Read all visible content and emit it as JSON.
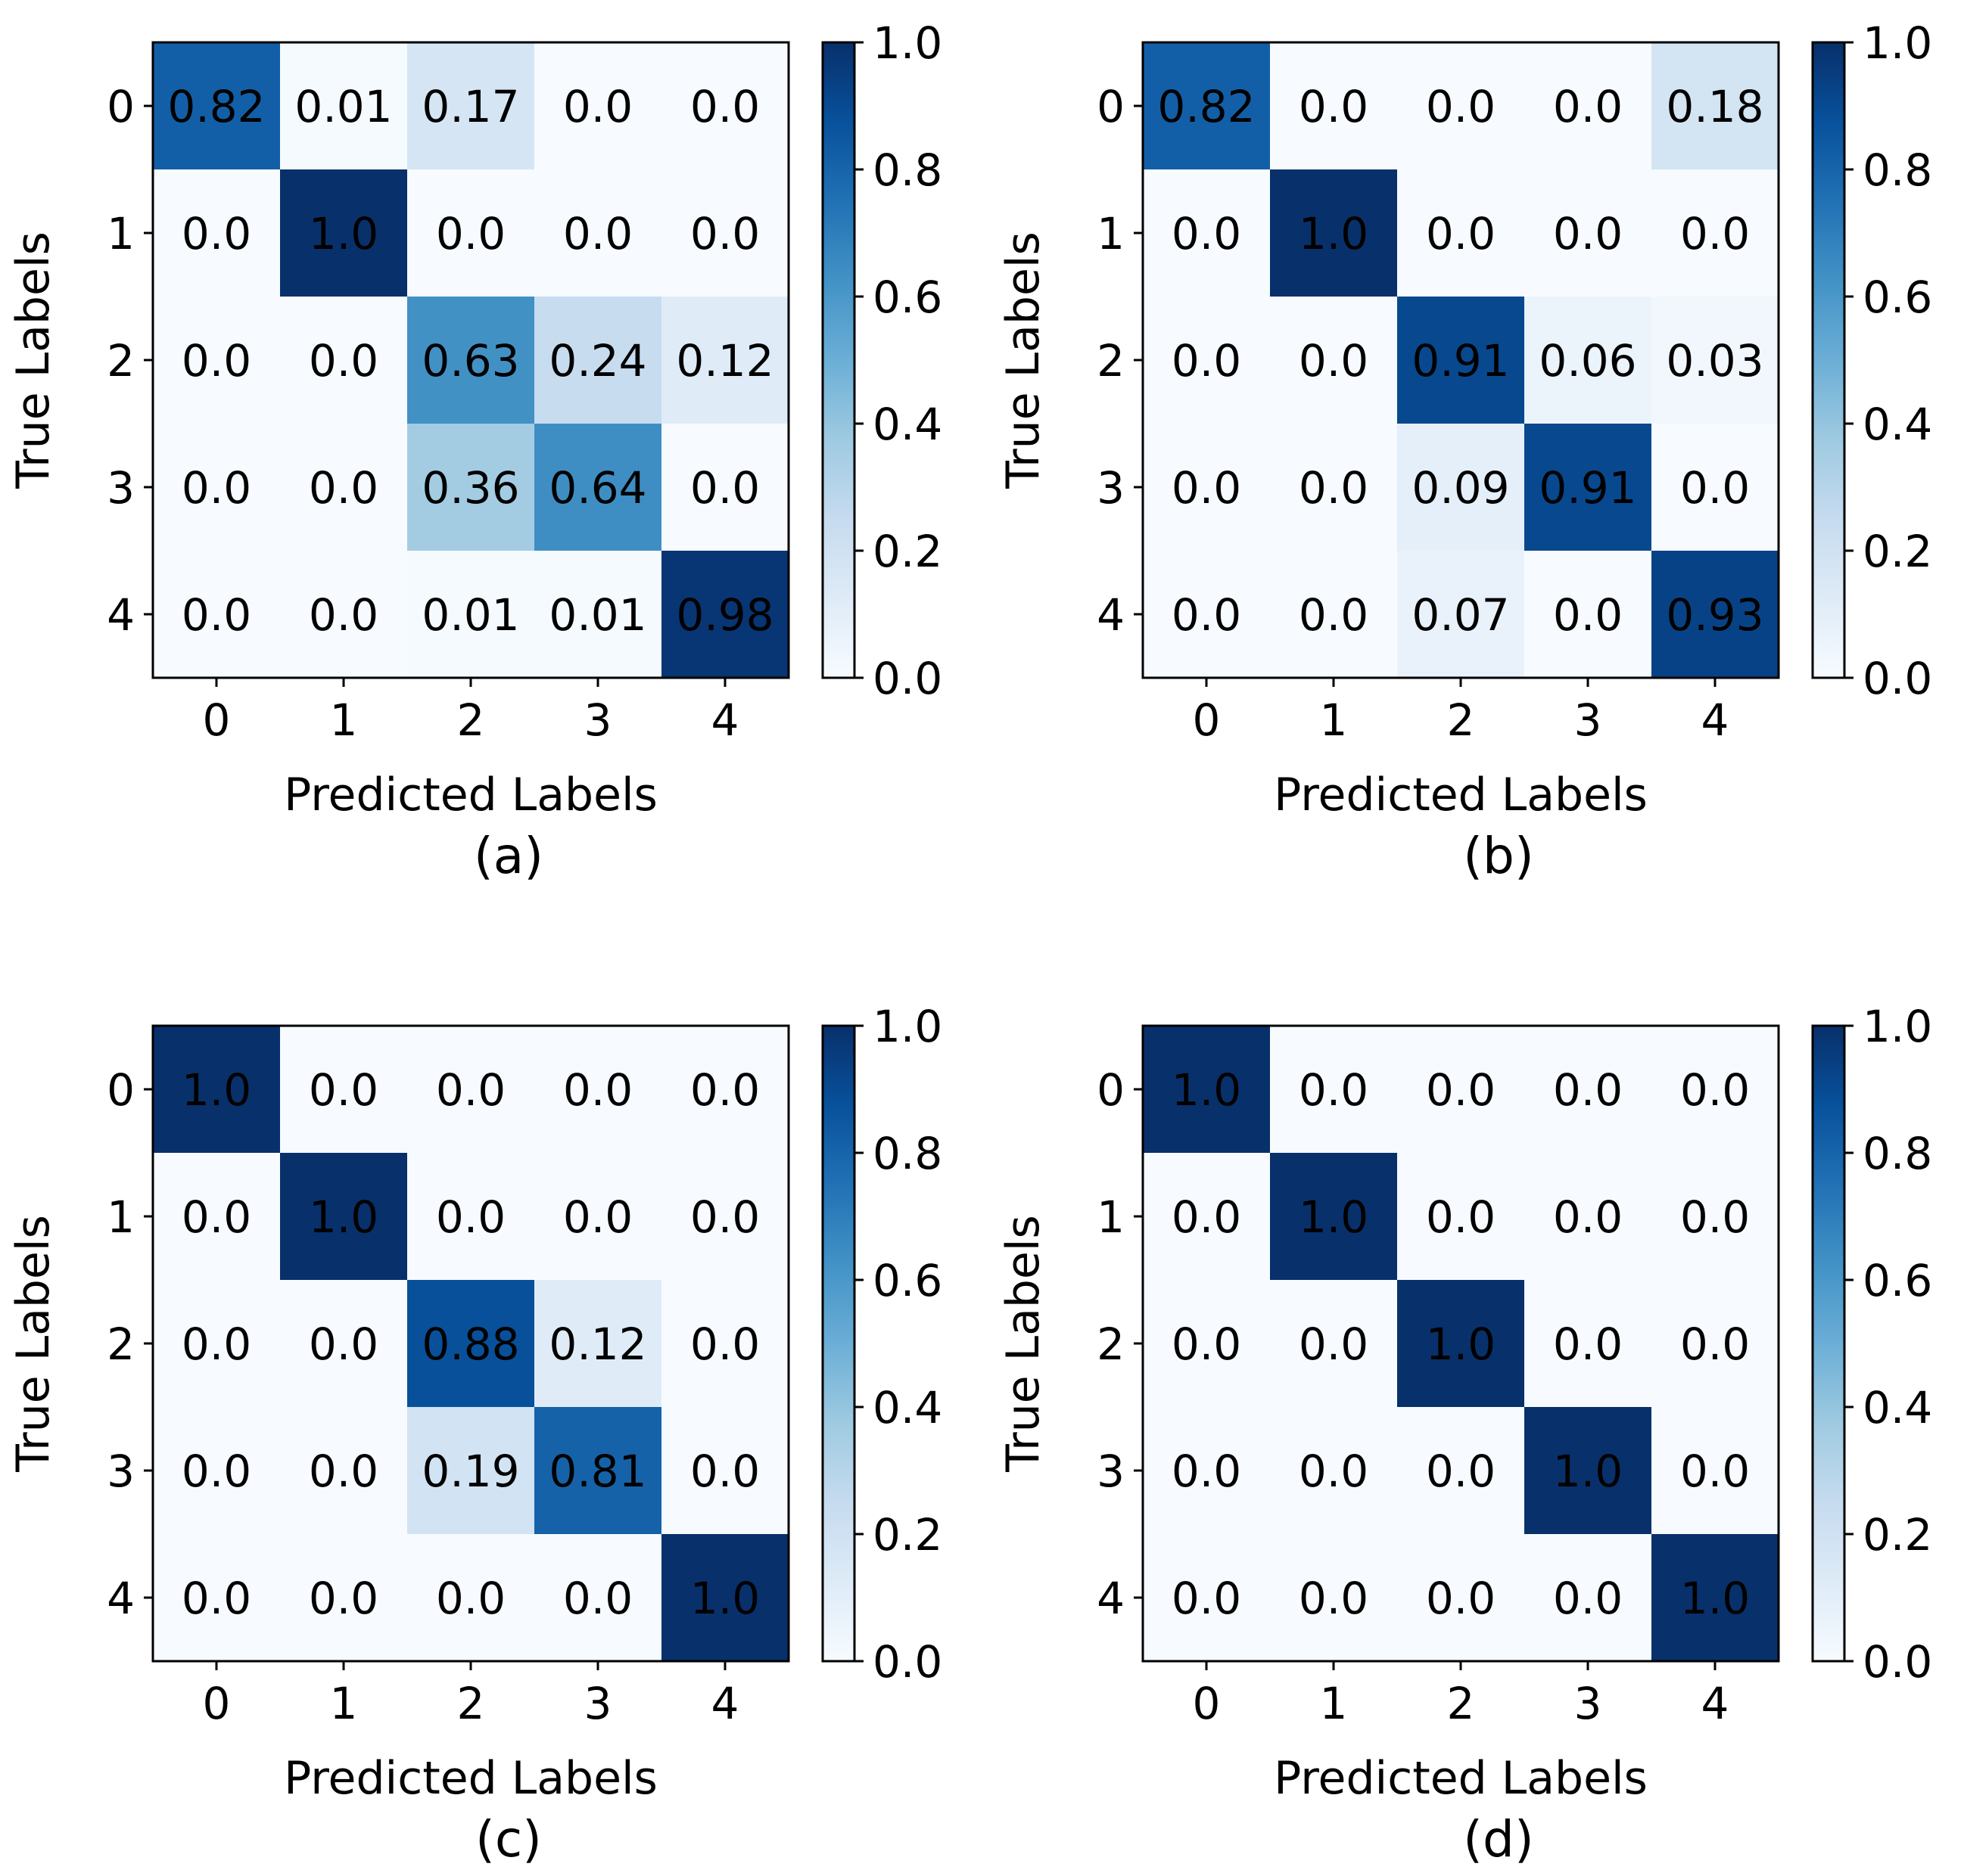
{
  "chart_data": [
    {
      "type": "heatmap",
      "caption": "(a)",
      "xlabel": "Predicted Labels",
      "ylabel": "True Labels",
      "x_ticks": [
        "0",
        "1",
        "2",
        "3",
        "4"
      ],
      "y_ticks": [
        "0",
        "1",
        "2",
        "3",
        "4"
      ],
      "colormap": "Blues",
      "vmin": 0.0,
      "vmax": 1.0,
      "colorbar_ticks": [
        "0.0",
        "0.2",
        "0.4",
        "0.6",
        "0.8",
        "1.0"
      ],
      "values": [
        [
          0.82,
          0.01,
          0.17,
          0.0,
          0.0
        ],
        [
          0.0,
          1.0,
          0.0,
          0.0,
          0.0
        ],
        [
          0.0,
          0.0,
          0.63,
          0.24,
          0.12
        ],
        [
          0.0,
          0.0,
          0.36,
          0.64,
          0.0
        ],
        [
          0.0,
          0.0,
          0.01,
          0.01,
          0.98
        ]
      ],
      "cell_labels": [
        [
          "0.82",
          "0.01",
          "0.17",
          "0.0",
          "0.0"
        ],
        [
          "0.0",
          "1.0",
          "0.0",
          "0.0",
          "0.0"
        ],
        [
          "0.0",
          "0.0",
          "0.63",
          "0.24",
          "0.12"
        ],
        [
          "0.0",
          "0.0",
          "0.36",
          "0.64",
          "0.0"
        ],
        [
          "0.0",
          "0.0",
          "0.01",
          "0.01",
          "0.98"
        ]
      ]
    },
    {
      "type": "heatmap",
      "caption": "(b)",
      "xlabel": "Predicted Labels",
      "ylabel": "True Labels",
      "x_ticks": [
        "0",
        "1",
        "2",
        "3",
        "4"
      ],
      "y_ticks": [
        "0",
        "1",
        "2",
        "3",
        "4"
      ],
      "colormap": "Blues",
      "vmin": 0.0,
      "vmax": 1.0,
      "colorbar_ticks": [
        "0.0",
        "0.2",
        "0.4",
        "0.6",
        "0.8",
        "1.0"
      ],
      "values": [
        [
          0.82,
          0.0,
          0.0,
          0.0,
          0.18
        ],
        [
          0.0,
          1.0,
          0.0,
          0.0,
          0.0
        ],
        [
          0.0,
          0.0,
          0.91,
          0.06,
          0.03
        ],
        [
          0.0,
          0.0,
          0.09,
          0.91,
          0.0
        ],
        [
          0.0,
          0.0,
          0.07,
          0.0,
          0.93
        ]
      ],
      "cell_labels": [
        [
          "0.82",
          "0.0",
          "0.0",
          "0.0",
          "0.18"
        ],
        [
          "0.0",
          "1.0",
          "0.0",
          "0.0",
          "0.0"
        ],
        [
          "0.0",
          "0.0",
          "0.91",
          "0.06",
          "0.03"
        ],
        [
          "0.0",
          "0.0",
          "0.09",
          "0.91",
          "0.0"
        ],
        [
          "0.0",
          "0.0",
          "0.07",
          "0.0",
          "0.93"
        ]
      ]
    },
    {
      "type": "heatmap",
      "caption": "(c)",
      "xlabel": "Predicted Labels",
      "ylabel": "True Labels",
      "x_ticks": [
        "0",
        "1",
        "2",
        "3",
        "4"
      ],
      "y_ticks": [
        "0",
        "1",
        "2",
        "3",
        "4"
      ],
      "colormap": "Blues",
      "vmin": 0.0,
      "vmax": 1.0,
      "colorbar_ticks": [
        "0.0",
        "0.2",
        "0.4",
        "0.6",
        "0.8",
        "1.0"
      ],
      "values": [
        [
          1.0,
          0.0,
          0.0,
          0.0,
          0.0
        ],
        [
          0.0,
          1.0,
          0.0,
          0.0,
          0.0
        ],
        [
          0.0,
          0.0,
          0.88,
          0.12,
          0.0
        ],
        [
          0.0,
          0.0,
          0.19,
          0.81,
          0.0
        ],
        [
          0.0,
          0.0,
          0.0,
          0.0,
          1.0
        ]
      ],
      "cell_labels": [
        [
          "1.0",
          "0.0",
          "0.0",
          "0.0",
          "0.0"
        ],
        [
          "0.0",
          "1.0",
          "0.0",
          "0.0",
          "0.0"
        ],
        [
          "0.0",
          "0.0",
          "0.88",
          "0.12",
          "0.0"
        ],
        [
          "0.0",
          "0.0",
          "0.19",
          "0.81",
          "0.0"
        ],
        [
          "0.0",
          "0.0",
          "0.0",
          "0.0",
          "1.0"
        ]
      ]
    },
    {
      "type": "heatmap",
      "caption": "(d)",
      "xlabel": "Predicted Labels",
      "ylabel": "True Labels",
      "x_ticks": [
        "0",
        "1",
        "2",
        "3",
        "4"
      ],
      "y_ticks": [
        "0",
        "1",
        "2",
        "3",
        "4"
      ],
      "colormap": "Blues",
      "vmin": 0.0,
      "vmax": 1.0,
      "colorbar_ticks": [
        "0.0",
        "0.2",
        "0.4",
        "0.6",
        "0.8",
        "1.0"
      ],
      "values": [
        [
          1.0,
          0.0,
          0.0,
          0.0,
          0.0
        ],
        [
          0.0,
          1.0,
          0.0,
          0.0,
          0.0
        ],
        [
          0.0,
          0.0,
          1.0,
          0.0,
          0.0
        ],
        [
          0.0,
          0.0,
          0.0,
          1.0,
          0.0
        ],
        [
          0.0,
          0.0,
          0.0,
          0.0,
          1.0
        ]
      ],
      "cell_labels": [
        [
          "1.0",
          "0.0",
          "0.0",
          "0.0",
          "0.0"
        ],
        [
          "0.0",
          "1.0",
          "0.0",
          "0.0",
          "0.0"
        ],
        [
          "0.0",
          "0.0",
          "1.0",
          "0.0",
          "0.0"
        ],
        [
          "0.0",
          "0.0",
          "0.0",
          "1.0",
          "0.0"
        ],
        [
          "0.0",
          "0.0",
          "0.0",
          "0.0",
          "1.0"
        ]
      ]
    }
  ]
}
